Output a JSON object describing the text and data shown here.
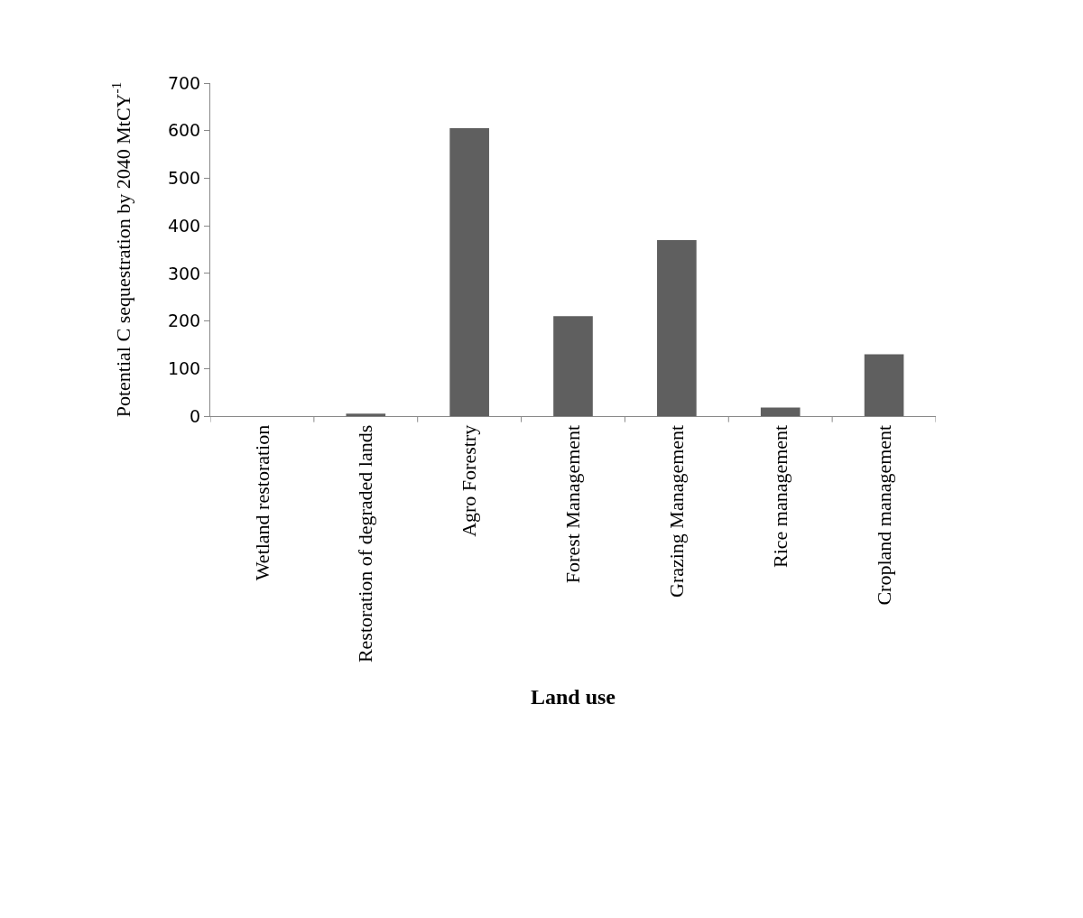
{
  "chart_data": {
    "type": "bar",
    "xlabel": "Land use",
    "ylabel": "Potential C sequestration by 2040 MtCY$^{-1}$",
    "categories": [
      "Wetland restoration",
      "Restoration of degraded lands",
      "Agro Forestry",
      "Forest Management",
      "Grazing Management",
      "Rice management",
      "Cropland management"
    ],
    "values": [
      0,
      5,
      605,
      210,
      370,
      18,
      130
    ],
    "color": "#5f5f5f",
    "ylim": [
      0,
      700
    ],
    "yticks": [
      0,
      100,
      200,
      300,
      400,
      500,
      600,
      700
    ]
  }
}
